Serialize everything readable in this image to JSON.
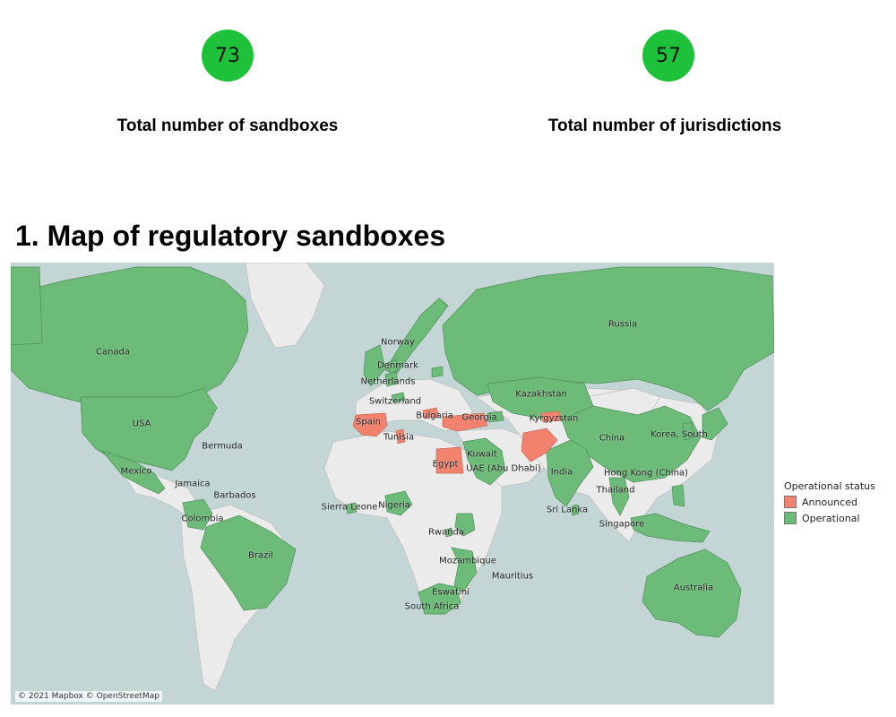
{
  "kpis": [
    {
      "value": "73",
      "label": "Total number of sandboxes",
      "color": "#1dc13a"
    },
    {
      "value": "57",
      "label": "Total number of jurisdictions",
      "color": "#1dc13a"
    }
  ],
  "section_title": "1. Map of regulatory sandboxes",
  "map": {
    "colors": {
      "water": "#c3d5d5",
      "land": "#ebebeb",
      "operational": "#6dbb78",
      "announced": "#f2826e"
    },
    "country_labels": [
      {
        "name": "Canada",
        "status": "Operational"
      },
      {
        "name": "USA",
        "status": "Operational"
      },
      {
        "name": "Bermuda",
        "status": "Operational"
      },
      {
        "name": "Mexico",
        "status": "Operational"
      },
      {
        "name": "Jamaica",
        "status": "Operational"
      },
      {
        "name": "Barbados",
        "status": "Operational"
      },
      {
        "name": "Colombia",
        "status": "Operational"
      },
      {
        "name": "Brazil",
        "status": "Operational"
      },
      {
        "name": "Norway",
        "status": "Operational"
      },
      {
        "name": "Denmark",
        "status": "Operational"
      },
      {
        "name": "Netherlands",
        "status": "Operational"
      },
      {
        "name": "Switzerland",
        "status": "Operational"
      },
      {
        "name": "Spain",
        "status": "Announced"
      },
      {
        "name": "Bulgaria",
        "status": "Announced"
      },
      {
        "name": "Georgia",
        "status": "Operational"
      },
      {
        "name": "Tunisia",
        "status": "Announced"
      },
      {
        "name": "Egypt",
        "status": "Announced"
      },
      {
        "name": "Kuwait",
        "status": "Operational"
      },
      {
        "name": "UAE (Abu Dhabi)",
        "status": "Operational"
      },
      {
        "name": "Sierra Leone",
        "status": "Operational"
      },
      {
        "name": "Nigeria",
        "status": "Operational"
      },
      {
        "name": "Rwanda",
        "status": "Operational"
      },
      {
        "name": "Mozambique",
        "status": "Operational"
      },
      {
        "name": "Mauritius",
        "status": "Operational"
      },
      {
        "name": "Eswatini",
        "status": "Operational"
      },
      {
        "name": "South Africa",
        "status": "Operational"
      },
      {
        "name": "Russia",
        "status": "Operational"
      },
      {
        "name": "Kazakhstan",
        "status": "Operational"
      },
      {
        "name": "Kyrgyzstan",
        "status": "Announced"
      },
      {
        "name": "China",
        "status": "Operational"
      },
      {
        "name": "Korea, South",
        "status": "Operational"
      },
      {
        "name": "India",
        "status": "Operational"
      },
      {
        "name": "Hong Kong (China)",
        "status": "Operational"
      },
      {
        "name": "Thailand",
        "status": "Operational"
      },
      {
        "name": "Sri Lanka",
        "status": "Operational"
      },
      {
        "name": "Singapore",
        "status": "Operational"
      },
      {
        "name": "Australia",
        "status": "Operational"
      }
    ],
    "attribution": "© 2021 Mapbox © OpenStreetMap"
  },
  "legend": {
    "title": "Operational status",
    "items": [
      {
        "label": "Announced",
        "color": "#f2826e"
      },
      {
        "label": "Operational",
        "color": "#6dbb78"
      }
    ]
  }
}
